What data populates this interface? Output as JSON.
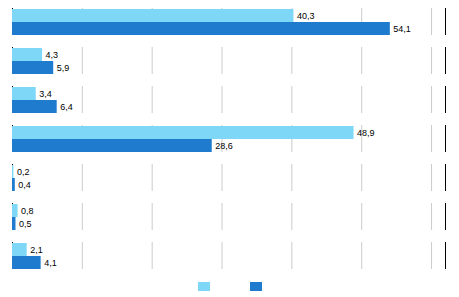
{
  "chart_data": {
    "type": "bar",
    "orientation": "horizontal",
    "categories": [
      null,
      null,
      null,
      null,
      null,
      null,
      null
    ],
    "series": [
      {
        "color": "#7fd7f7",
        "values": [
          40.3,
          4.3,
          3.4,
          48.9,
          0.2,
          0.8,
          2.1
        ],
        "value_labels": [
          "40,3",
          "4,3",
          "3,4",
          "48,9",
          "0,2",
          "0,8",
          "2,1"
        ]
      },
      {
        "color": "#1e7bcd",
        "values": [
          54.1,
          5.9,
          6.4,
          28.6,
          0.4,
          0.5,
          4.1
        ],
        "value_labels": [
          "54,1",
          "5,9",
          "6,4",
          "28,6",
          "0,4",
          "0,5",
          "4,1"
        ]
      }
    ],
    "xlim": [
      0,
      62
    ],
    "xticks": [
      0,
      10,
      20,
      30,
      40,
      50,
      60
    ],
    "grid": true,
    "data_labels": true,
    "tick_labels": false,
    "legend": "bottom"
  }
}
